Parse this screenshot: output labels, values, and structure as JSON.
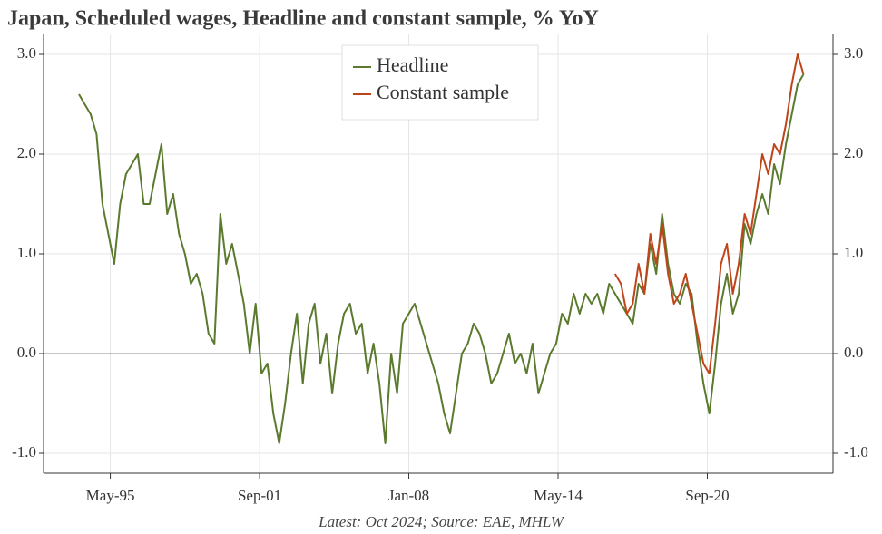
{
  "chart_data": {
    "type": "line",
    "title": "Japan, Scheduled wages, Headline and constant sample, % YoY",
    "note": "Latest: Oct 2024; Source: EAE, MHLW",
    "x": [
      "1994-01",
      "1994-04",
      "1994-07",
      "1994-10",
      "1995-01",
      "1995-04",
      "1995-07",
      "1995-10",
      "1996-01",
      "1996-04",
      "1996-07",
      "1996-10",
      "1997-01",
      "1997-04",
      "1997-07",
      "1997-10",
      "1998-01",
      "1998-04",
      "1998-07",
      "1998-10",
      "1999-01",
      "1999-04",
      "1999-07",
      "1999-10",
      "2000-01",
      "2000-04",
      "2000-07",
      "2000-10",
      "2001-01",
      "2001-04",
      "2001-07",
      "2001-10",
      "2002-01",
      "2002-04",
      "2002-07",
      "2002-10",
      "2003-01",
      "2003-04",
      "2003-07",
      "2003-10",
      "2004-01",
      "2004-04",
      "2004-07",
      "2004-10",
      "2005-01",
      "2005-04",
      "2005-07",
      "2005-10",
      "2006-01",
      "2006-04",
      "2006-07",
      "2006-10",
      "2007-01",
      "2007-04",
      "2007-07",
      "2007-10",
      "2008-01",
      "2008-04",
      "2008-07",
      "2008-10",
      "2009-01",
      "2009-04",
      "2009-07",
      "2009-10",
      "2010-01",
      "2010-04",
      "2010-07",
      "2010-10",
      "2011-01",
      "2011-04",
      "2011-07",
      "2011-10",
      "2012-01",
      "2012-04",
      "2012-07",
      "2012-10",
      "2013-01",
      "2013-04",
      "2013-07",
      "2013-10",
      "2014-01",
      "2014-04",
      "2014-07",
      "2014-10",
      "2015-01",
      "2015-04",
      "2015-07",
      "2015-10",
      "2016-01",
      "2016-04",
      "2016-07",
      "2016-10",
      "2017-01",
      "2017-04",
      "2017-07",
      "2017-10",
      "2018-01",
      "2018-04",
      "2018-07",
      "2018-10",
      "2019-01",
      "2019-04",
      "2019-07",
      "2019-10",
      "2020-01",
      "2020-04",
      "2020-07",
      "2020-10",
      "2021-01",
      "2021-04",
      "2021-07",
      "2021-10",
      "2022-01",
      "2022-04",
      "2022-07",
      "2022-10",
      "2023-01",
      "2023-04",
      "2023-07",
      "2023-10",
      "2024-01",
      "2024-04",
      "2024-07",
      "2024-10"
    ],
    "series": [
      {
        "name": "Headline",
        "color": "#5a7a2e",
        "values": [
          2.6,
          2.5,
          2.4,
          2.2,
          1.5,
          1.2,
          0.9,
          1.5,
          1.8,
          1.9,
          2.0,
          1.5,
          1.5,
          1.8,
          2.1,
          1.4,
          1.6,
          1.2,
          1.0,
          0.7,
          0.8,
          0.6,
          0.2,
          0.1,
          1.4,
          0.9,
          1.1,
          0.8,
          0.5,
          0.0,
          0.5,
          -0.2,
          -0.1,
          -0.6,
          -0.9,
          -0.5,
          0.0,
          0.4,
          -0.3,
          0.3,
          0.5,
          -0.1,
          0.2,
          -0.4,
          0.1,
          0.4,
          0.5,
          0.2,
          0.3,
          -0.2,
          0.1,
          -0.3,
          -0.9,
          0.0,
          -0.4,
          0.3,
          0.4,
          0.5,
          0.3,
          0.1,
          -0.1,
          -0.3,
          -0.6,
          -0.8,
          -0.4,
          0.0,
          0.1,
          0.3,
          0.2,
          0.0,
          -0.3,
          -0.2,
          0.0,
          0.2,
          -0.1,
          0.0,
          -0.2,
          0.1,
          -0.4,
          -0.2,
          0.0,
          0.1,
          0.4,
          0.3,
          0.6,
          0.4,
          0.6,
          0.5,
          0.6,
          0.4,
          0.7,
          0.6,
          0.5,
          0.4,
          0.3,
          0.7,
          0.6,
          1.1,
          0.8,
          1.4,
          0.9,
          0.6,
          0.5,
          0.7,
          0.6,
          0.1,
          -0.3,
          -0.6,
          -0.1,
          0.5,
          0.8,
          0.4,
          0.6,
          1.3,
          1.1,
          1.4,
          1.6,
          1.4,
          1.9,
          1.7,
          2.1,
          2.4,
          2.7,
          2.8
        ]
      },
      {
        "name": "Constant sample",
        "color": "#c0441a",
        "values": [
          null,
          null,
          null,
          null,
          null,
          null,
          null,
          null,
          null,
          null,
          null,
          null,
          null,
          null,
          null,
          null,
          null,
          null,
          null,
          null,
          null,
          null,
          null,
          null,
          null,
          null,
          null,
          null,
          null,
          null,
          null,
          null,
          null,
          null,
          null,
          null,
          null,
          null,
          null,
          null,
          null,
          null,
          null,
          null,
          null,
          null,
          null,
          null,
          null,
          null,
          null,
          null,
          null,
          null,
          null,
          null,
          null,
          null,
          null,
          null,
          null,
          null,
          null,
          null,
          null,
          null,
          null,
          null,
          null,
          null,
          null,
          null,
          null,
          null,
          null,
          null,
          null,
          null,
          null,
          null,
          null,
          null,
          null,
          null,
          null,
          null,
          null,
          null,
          null,
          null,
          null,
          0.8,
          0.7,
          0.4,
          0.5,
          0.9,
          0.6,
          1.2,
          0.9,
          1.3,
          0.8,
          0.5,
          0.6,
          0.8,
          0.5,
          0.2,
          -0.1,
          -0.2,
          0.3,
          0.9,
          1.1,
          0.6,
          0.9,
          1.4,
          1.2,
          1.6,
          2.0,
          1.8,
          2.1,
          2.0,
          2.3,
          2.7,
          3.0,
          2.8
        ]
      }
    ],
    "xlim": [
      "1992-07",
      "2026-01"
    ],
    "xticks": [
      {
        "value": "1995-05",
        "label": "May-95"
      },
      {
        "value": "2001-09",
        "label": "Sep-01"
      },
      {
        "value": "2008-01",
        "label": "Jan-08"
      },
      {
        "value": "2014-05",
        "label": "May-14"
      },
      {
        "value": "2020-09",
        "label": "Sep-20"
      }
    ],
    "ylim": [
      -1.2,
      3.2
    ],
    "yticks": [
      {
        "value": -1,
        "label": "-1.0"
      },
      {
        "value": 0,
        "label": "0.0"
      },
      {
        "value": 1,
        "label": "1.0"
      },
      {
        "value": 2,
        "label": "2.0"
      },
      {
        "value": 3,
        "label": "3.0"
      }
    ],
    "grid": true,
    "legend": "upper center"
  }
}
